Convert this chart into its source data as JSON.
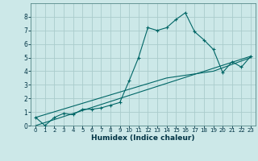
{
  "xlabel": "Humidex (Indice chaleur)",
  "background_color": "#cce8e8",
  "grid_color": "#aacccc",
  "line_color": "#006666",
  "series": [
    [
      0,
      0.6
    ],
    [
      1,
      0.0
    ],
    [
      2,
      0.6
    ],
    [
      3,
      0.9
    ],
    [
      4,
      0.8
    ],
    [
      5,
      1.2
    ],
    [
      6,
      1.2
    ],
    [
      7,
      1.3
    ],
    [
      8,
      1.5
    ],
    [
      9,
      1.7
    ],
    [
      10,
      3.3
    ],
    [
      11,
      5.0
    ],
    [
      12,
      7.2
    ],
    [
      13,
      7.0
    ],
    [
      14,
      7.2
    ],
    [
      15,
      7.8
    ],
    [
      16,
      8.3
    ],
    [
      17,
      6.9
    ],
    [
      18,
      6.3
    ],
    [
      19,
      5.6
    ],
    [
      20,
      3.9
    ],
    [
      21,
      4.7
    ],
    [
      22,
      4.3
    ],
    [
      23,
      5.1
    ]
  ],
  "line2": [
    [
      0,
      0.0
    ],
    [
      23,
      5.1
    ]
  ],
  "line3": [
    [
      0,
      0.6
    ],
    [
      14,
      3.5
    ],
    [
      19,
      4.0
    ],
    [
      23,
      5.0
    ]
  ],
  "xlim": [
    -0.5,
    23.5
  ],
  "ylim": [
    0,
    9
  ],
  "xticks": [
    0,
    1,
    2,
    3,
    4,
    5,
    6,
    7,
    8,
    9,
    10,
    11,
    12,
    13,
    14,
    15,
    16,
    17,
    18,
    19,
    20,
    21,
    22,
    23
  ],
  "yticks": [
    0,
    1,
    2,
    3,
    4,
    5,
    6,
    7,
    8
  ],
  "xlabel_fontsize": 6.5,
  "tick_fontsize": 5.0
}
